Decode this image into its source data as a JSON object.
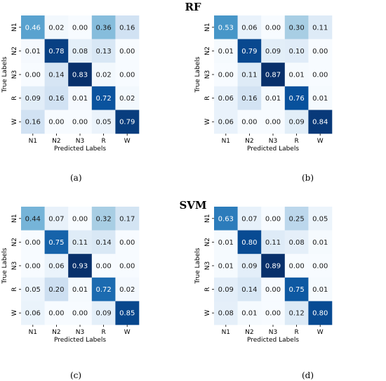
{
  "titles": {
    "top": "RF",
    "bottom": "SVM"
  },
  "chart_data": [
    {
      "type": "heatmap",
      "caption": "(a)",
      "xlabel": "Predicted Labels",
      "ylabel": "True Labels",
      "x_categories": [
        "N1",
        "N2",
        "N3",
        "R",
        "W"
      ],
      "y_categories": [
        "N1",
        "N2",
        "N3",
        "R",
        "W"
      ],
      "values": [
        [
          0.46,
          0.02,
          0.0,
          0.36,
          0.16
        ],
        [
          0.01,
          0.78,
          0.08,
          0.13,
          0.0
        ],
        [
          0.0,
          0.14,
          0.83,
          0.02,
          0.0
        ],
        [
          0.09,
          0.16,
          0.01,
          0.72,
          0.02
        ],
        [
          0.16,
          0.0,
          0.0,
          0.05,
          0.79
        ]
      ],
      "colormap": "Blues"
    },
    {
      "type": "heatmap",
      "caption": "(b)",
      "xlabel": "Predicted Labels",
      "ylabel": "True Labels",
      "x_categories": [
        "N1",
        "N2",
        "N3",
        "R",
        "W"
      ],
      "y_categories": [
        "N1",
        "N2",
        "N3",
        "R",
        "W"
      ],
      "values": [
        [
          0.53,
          0.06,
          0.0,
          0.3,
          0.11
        ],
        [
          0.01,
          0.79,
          0.09,
          0.1,
          0.0
        ],
        [
          0.0,
          0.11,
          0.87,
          0.01,
          0.0
        ],
        [
          0.06,
          0.16,
          0.01,
          0.76,
          0.01
        ],
        [
          0.06,
          0.0,
          0.0,
          0.09,
          0.84
        ]
      ],
      "colormap": "Blues"
    },
    {
      "type": "heatmap",
      "caption": "(c)",
      "xlabel": "Predicted Labels",
      "ylabel": "True Labels",
      "x_categories": [
        "N1",
        "N2",
        "N3",
        "R",
        "W"
      ],
      "y_categories": [
        "N1",
        "N2",
        "N3",
        "R",
        "W"
      ],
      "values": [
        [
          0.44,
          0.07,
          0.0,
          0.32,
          0.17
        ],
        [
          0.0,
          0.75,
          0.11,
          0.14,
          0.0
        ],
        [
          0.0,
          0.06,
          0.93,
          0.0,
          0.0
        ],
        [
          0.05,
          0.2,
          0.01,
          0.72,
          0.02
        ],
        [
          0.06,
          0.0,
          0.0,
          0.09,
          0.85
        ]
      ],
      "colormap": "Blues"
    },
    {
      "type": "heatmap",
      "caption": "(d)",
      "xlabel": "Predicted Labels",
      "ylabel": "True Labels",
      "x_categories": [
        "N1",
        "N2",
        "N3",
        "R",
        "W"
      ],
      "y_categories": [
        "N1",
        "N2",
        "N3",
        "R",
        "W"
      ],
      "values": [
        [
          0.63,
          0.07,
          0.0,
          0.25,
          0.05
        ],
        [
          0.01,
          0.8,
          0.11,
          0.08,
          0.01
        ],
        [
          0.01,
          0.09,
          0.89,
          0.0,
          0.0
        ],
        [
          0.09,
          0.14,
          0.0,
          0.75,
          0.01
        ],
        [
          0.08,
          0.01,
          0.0,
          0.12,
          0.8
        ]
      ],
      "colormap": "Blues"
    }
  ]
}
